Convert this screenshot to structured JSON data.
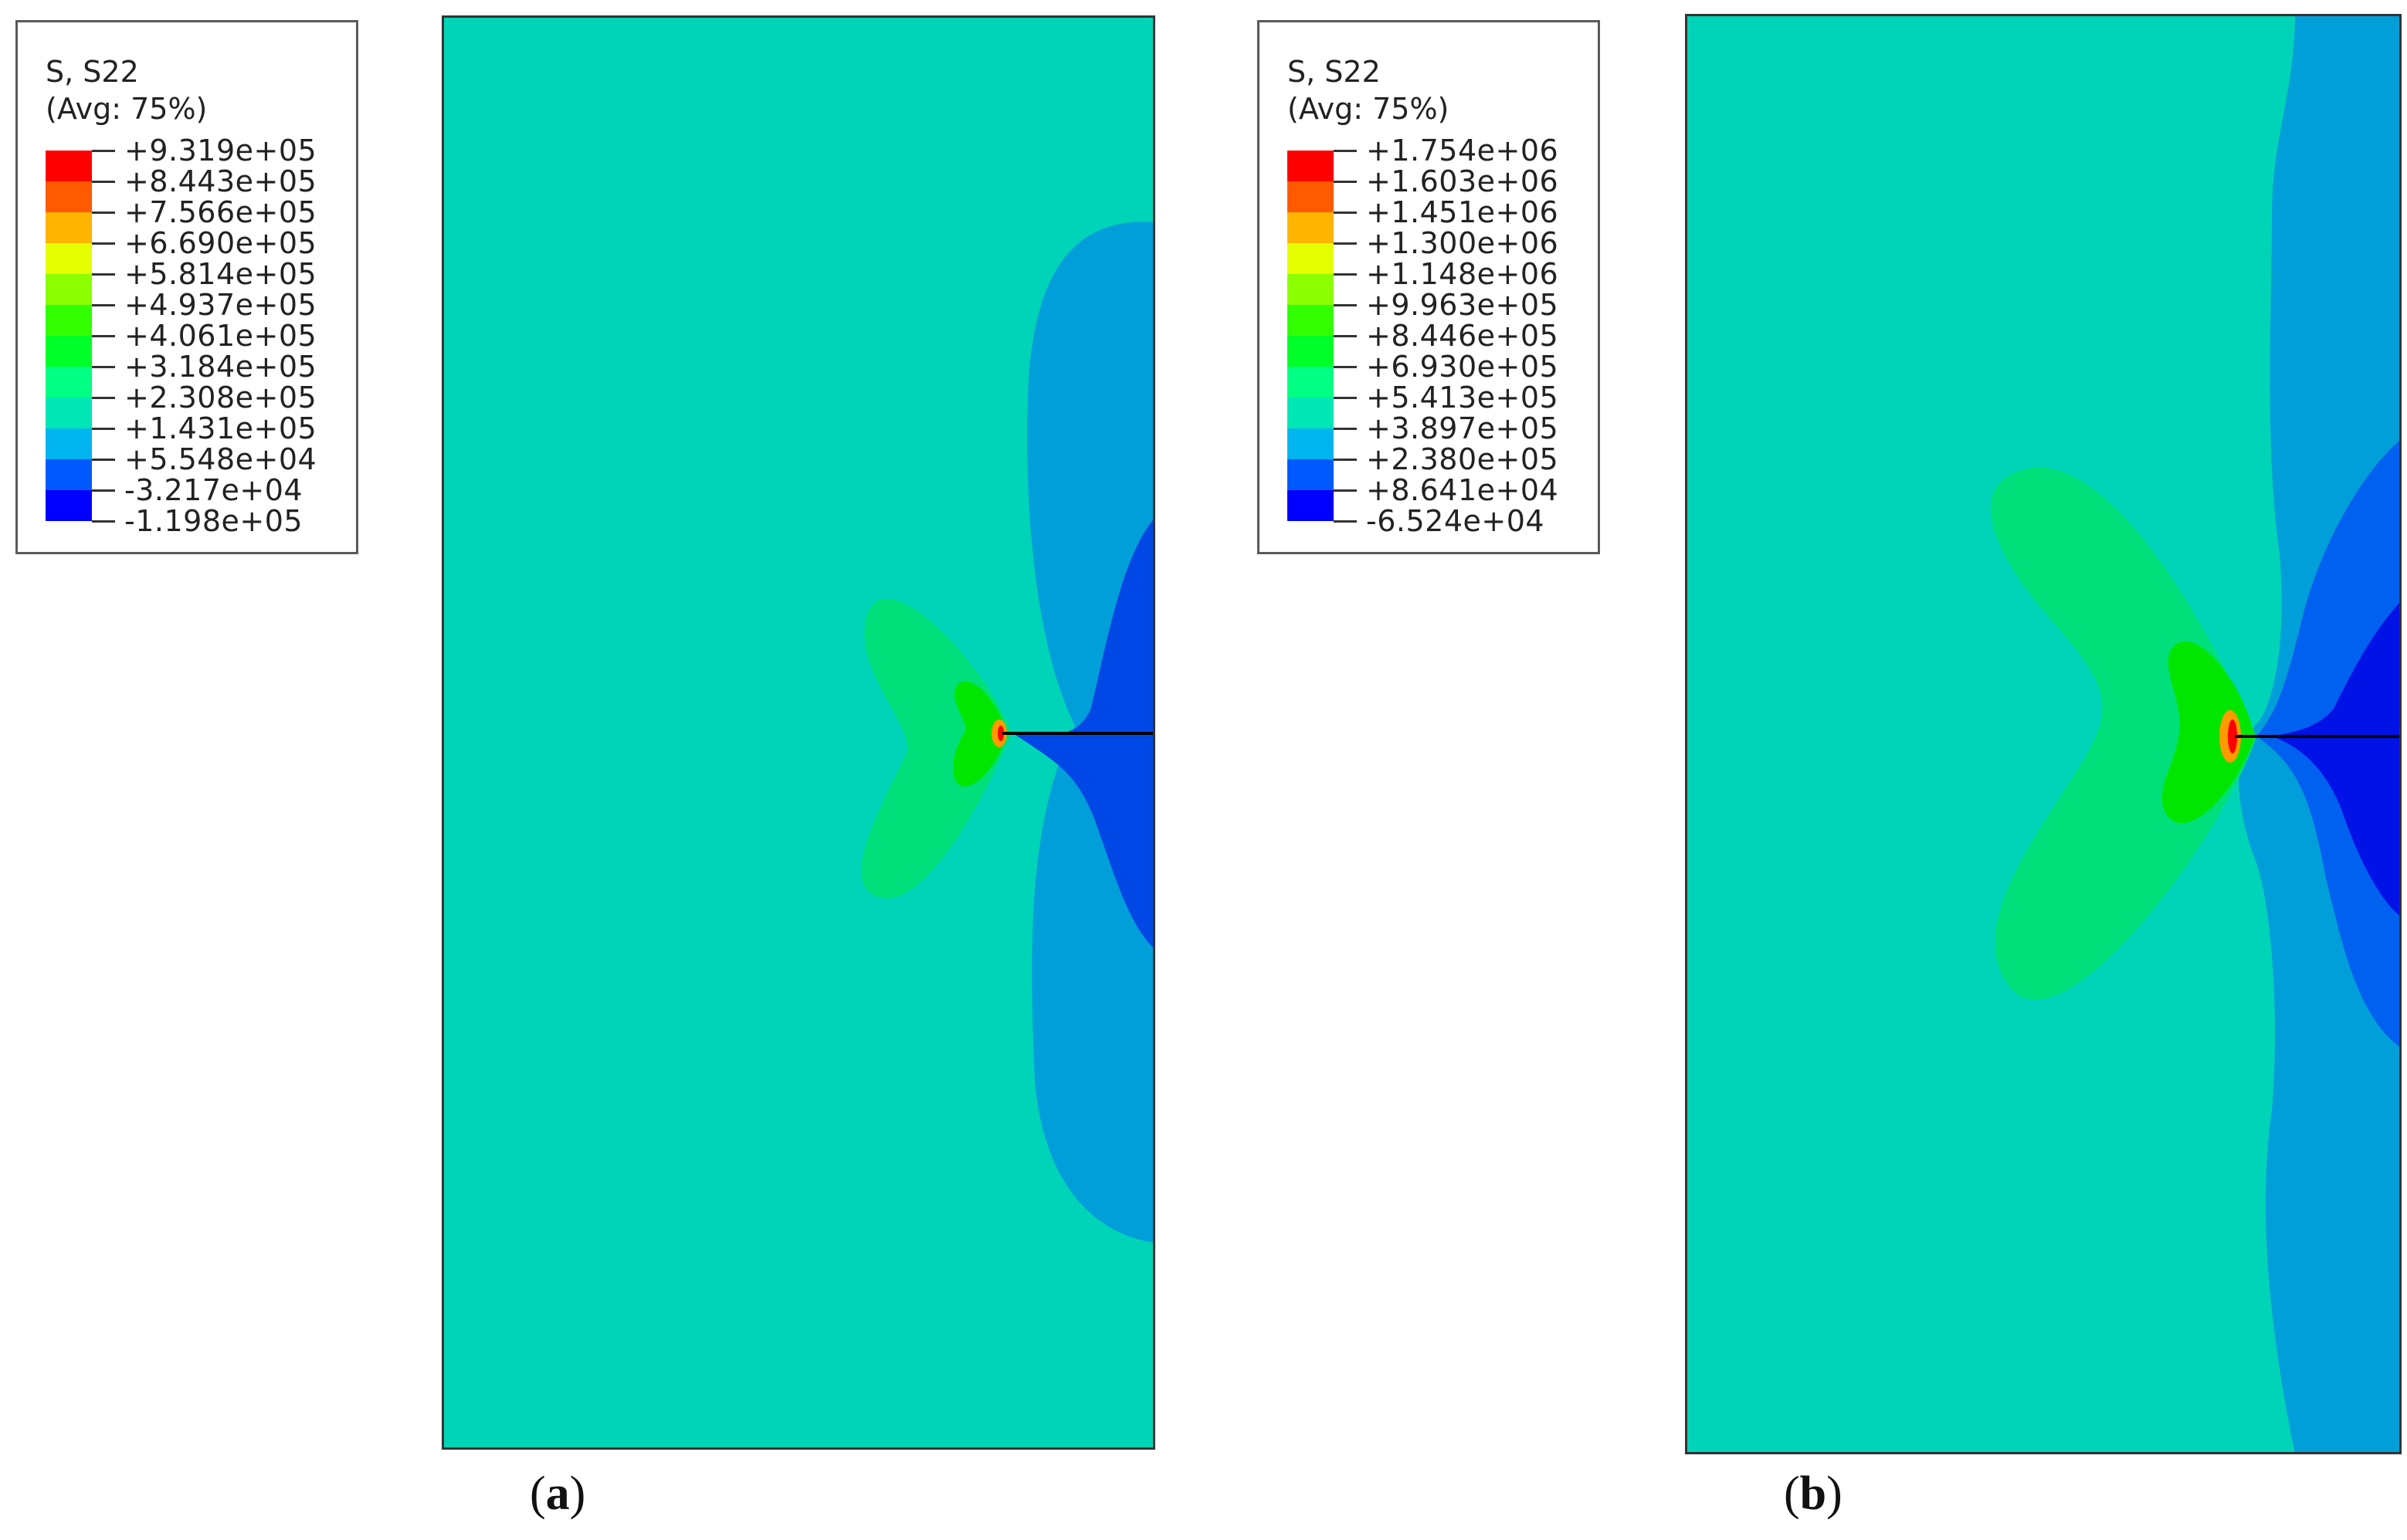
{
  "panels": [
    {
      "legend": {
        "title_line1": "S, S22",
        "title_line2": "(Avg: 75%)",
        "labels": [
          "+9.319e+05",
          "+8.443e+05",
          "+7.566e+05",
          "+6.690e+05",
          "+5.814e+05",
          "+4.937e+05",
          "+4.061e+05",
          "+3.184e+05",
          "+2.308e+05",
          "+1.431e+05",
          "+5.548e+04",
          "-3.217e+04",
          "-1.198e+05"
        ]
      },
      "label_open": "(",
      "label_letter": "a",
      "label_close": ")"
    },
    {
      "legend": {
        "title_line1": "S, S22",
        "title_line2": "(Avg: 75%)",
        "labels": [
          "+1.754e+06",
          "+1.603e+06",
          "+1.451e+06",
          "+1.300e+06",
          "+1.148e+06",
          "+9.963e+05",
          "+8.446e+05",
          "+6.930e+05",
          "+5.413e+05",
          "+3.897e+05",
          "+2.380e+05",
          "+8.641e+04",
          "-6.524e+04"
        ]
      },
      "label_open": "(",
      "label_letter": "b",
      "label_close": ")"
    }
  ],
  "colors": {
    "scale": [
      "#ff0000",
      "#ff5a00",
      "#ffb400",
      "#e6ff00",
      "#8cff00",
      "#32ff00",
      "#00ff28",
      "#00ff82",
      "#00e6b4",
      "#00b4f0",
      "#005aff",
      "#0000ff"
    ],
    "background_field": "#00d4b8",
    "crack_line": "#000000"
  }
}
